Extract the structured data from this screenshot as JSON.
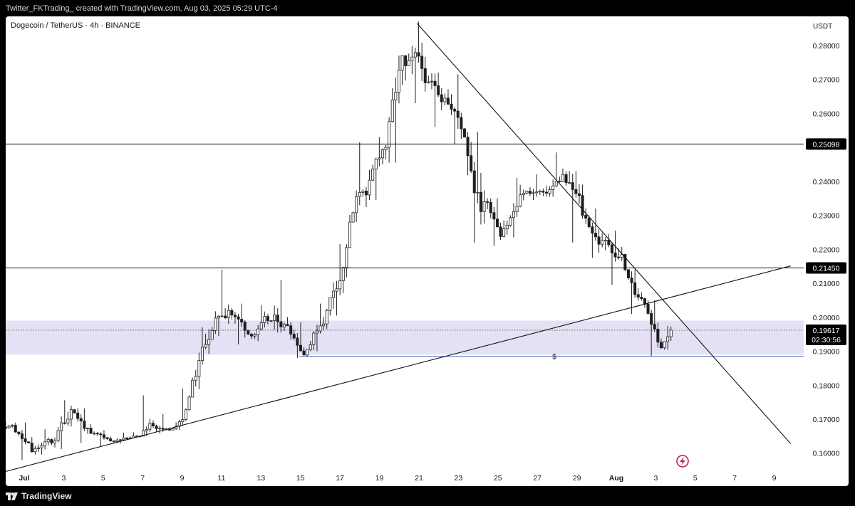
{
  "header": {
    "attribution": "Twitter_FKTrading_ created with TradingView.com, Aug 03, 2025 05:29 UTC-4"
  },
  "footer": {
    "brand": "TradingView",
    "logo_icon": "tradingview-logo-icon"
  },
  "colors": {
    "up_body": "#ffffff",
    "down_body": "#1f1f1f",
    "candle_wick": "#1f1f1f",
    "zone_fill": "#e6e0f5",
    "support_line": "#5b7bd1",
    "trend_line": "#111111",
    "price_badge_bg": "#000000",
    "price_badge_text": "#ffffff",
    "flash_icon": "#c2185b"
  },
  "chart_data": {
    "type": "candlestick",
    "symbol_label": "Dogecoin / TetherUS · 4h · BINANCE",
    "currency_label": "USDT",
    "x_tick_labels": [
      "Jul",
      "3",
      "5",
      "7",
      "9",
      "11",
      "13",
      "15",
      "17",
      "19",
      "21",
      "23",
      "25",
      "27",
      "29",
      "Aug",
      "3",
      "5",
      "7",
      "9"
    ],
    "y_tick_labels": [
      "0.28000",
      "0.27000",
      "0.26000",
      "0.25098",
      "0.24000",
      "0.23000",
      "0.22000",
      "0.21450",
      "0.21000",
      "0.20000",
      "0.19617",
      "0.19000",
      "0.18000",
      "0.17000",
      "0.16000"
    ],
    "y_range": [
      0.1545,
      0.2875
    ],
    "current_price": "0.19617",
    "countdown": "02:30:56",
    "horizontal_levels": [
      {
        "price": 0.25098,
        "label": "0.25098"
      },
      {
        "price": 0.2145,
        "label": "0.21450"
      }
    ],
    "zone": {
      "top": 0.199,
      "bottom": 0.189
    },
    "support_line": {
      "price": 0.1885,
      "from": "Jul 15",
      "to": "Aug 9",
      "marker": "$"
    },
    "trendlines": [
      {
        "name": "descending",
        "points": [
          [
            "Jul 21",
            0.2865
          ],
          [
            "Aug 9",
            0.1628
          ]
        ]
      },
      {
        "name": "ascending",
        "points": [
          [
            "Jun 30",
            0.1545
          ],
          [
            "Aug 9",
            0.2151
          ]
        ]
      }
    ],
    "days": [
      {
        "date": "Jun 30",
        "close": 0.1682,
        "high": 0.1692,
        "low": 0.165
      },
      {
        "date": "Jul 1",
        "close": 0.1604,
        "high": 0.169,
        "low": 0.158
      },
      {
        "date": "Jul 2",
        "close": 0.163,
        "high": 0.167,
        "low": 0.1596
      },
      {
        "date": "Jul 3",
        "close": 0.1728,
        "high": 0.1756,
        "low": 0.1612
      },
      {
        "date": "Jul 4",
        "close": 0.1658,
        "high": 0.1732,
        "low": 0.163
      },
      {
        "date": "Jul 5",
        "close": 0.1636,
        "high": 0.1668,
        "low": 0.162
      },
      {
        "date": "Jul 6",
        "close": 0.1645,
        "high": 0.166,
        "low": 0.1628
      },
      {
        "date": "Jul 7",
        "close": 0.1688,
        "high": 0.177,
        "low": 0.165
      },
      {
        "date": "Jul 8",
        "close": 0.1668,
        "high": 0.1715,
        "low": 0.1658
      },
      {
        "date": "Jul 9",
        "close": 0.1765,
        "high": 0.179,
        "low": 0.1668
      },
      {
        "date": "Jul 10",
        "close": 0.1935,
        "high": 0.197,
        "low": 0.1788
      },
      {
        "date": "Jul 11",
        "close": 0.202,
        "high": 0.214,
        "low": 0.1945
      },
      {
        "date": "Jul 12",
        "close": 0.195,
        "high": 0.204,
        "low": 0.192
      },
      {
        "date": "Jul 13",
        "close": 0.199,
        "high": 0.2035,
        "low": 0.193
      },
      {
        "date": "Jul 14",
        "close": 0.1975,
        "high": 0.211,
        "low": 0.1955
      },
      {
        "date": "Jul 15",
        "close": 0.1905,
        "high": 0.1985,
        "low": 0.188
      },
      {
        "date": "Jul 16",
        "close": 0.202,
        "high": 0.204,
        "low": 0.19
      },
      {
        "date": "Jul 17",
        "close": 0.2205,
        "high": 0.2215,
        "low": 0.2005
      },
      {
        "date": "Jul 18",
        "close": 0.236,
        "high": 0.2515,
        "low": 0.228
      },
      {
        "date": "Jul 19",
        "close": 0.25,
        "high": 0.253,
        "low": 0.2345
      },
      {
        "date": "Jul 20",
        "close": 0.274,
        "high": 0.277,
        "low": 0.2455
      },
      {
        "date": "Jul 21",
        "close": 0.269,
        "high": 0.287,
        "low": 0.263
      },
      {
        "date": "Jul 22",
        "close": 0.2645,
        "high": 0.272,
        "low": 0.256
      },
      {
        "date": "Jul 23",
        "close": 0.253,
        "high": 0.2715,
        "low": 0.251
      },
      {
        "date": "Jul 24",
        "close": 0.234,
        "high": 0.2545,
        "low": 0.222
      },
      {
        "date": "Jul 25",
        "close": 0.226,
        "high": 0.235,
        "low": 0.221
      },
      {
        "date": "Jul 26",
        "close": 0.2365,
        "high": 0.241,
        "low": 0.2235
      },
      {
        "date": "Jul 27",
        "close": 0.2368,
        "high": 0.242,
        "low": 0.2345
      },
      {
        "date": "Jul 28",
        "close": 0.242,
        "high": 0.2485,
        "low": 0.2355
      },
      {
        "date": "Jul 29",
        "close": 0.23,
        "high": 0.243,
        "low": 0.222
      },
      {
        "date": "Jul 30",
        "close": 0.2225,
        "high": 0.232,
        "low": 0.2175
      },
      {
        "date": "Jul 31",
        "close": 0.2185,
        "high": 0.2255,
        "low": 0.2095
      },
      {
        "date": "Aug 1",
        "close": 0.2055,
        "high": 0.214,
        "low": 0.201
      },
      {
        "date": "Aug 2",
        "close": 0.191,
        "high": 0.205,
        "low": 0.1885
      },
      {
        "date": "Aug 3",
        "close": 0.1962,
        "high": 0.1975,
        "low": 0.1905
      }
    ]
  }
}
